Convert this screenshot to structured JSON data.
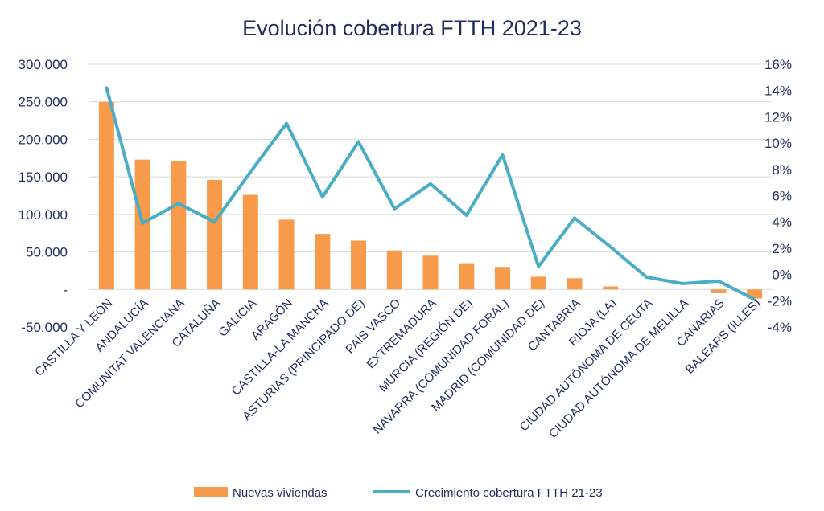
{
  "chart_data": {
    "type": "bar",
    "title": "Evolución cobertura FTTH 2021-23",
    "categories": [
      "CASTILLA Y LEÓN",
      "ANDALUCÍA",
      "COMUNITAT VALENCIANA",
      "CATALUÑA",
      "GALICIA",
      "ARAGÓN",
      "CASTILLA-LA MANCHA",
      "ASTURIAS (PRINCIPADO DE)",
      "PAÍS VASCO",
      "EXTREMADURA",
      "MURCIA (REGIÓN DE)",
      "NAVARRA (COMUNIDAD FORAL)",
      "MADRID (COMUNIDAD DE)",
      "CANTABRIA",
      "RIOJA (LA)",
      "CIUDAD AUTÓNOMA DE CEUTA",
      "CIUDAD AUTÓNOMA DE MELILLA",
      "CANARIAS",
      "BALEARS (ILLES)"
    ],
    "series": [
      {
        "name": "Nuevas viviendas",
        "type": "bar",
        "axis": "left",
        "color": "#f79a4a",
        "values": [
          250000,
          173000,
          171000,
          146000,
          126000,
          93000,
          74000,
          65000,
          52000,
          45000,
          35000,
          30000,
          17000,
          15000,
          4000,
          0,
          0,
          -5000,
          -12000
        ]
      },
      {
        "name": "Crecimiento cobertura FTTH 21-23",
        "type": "line",
        "axis": "right",
        "color": "#4bacc6",
        "values": [
          14.2,
          3.9,
          5.4,
          4.0,
          7.8,
          11.5,
          5.9,
          10.1,
          5.0,
          6.9,
          4.5,
          9.1,
          0.6,
          4.3,
          2.1,
          -0.2,
          -0.7,
          -0.5,
          -1.9
        ]
      }
    ],
    "y_left": {
      "min": -50000,
      "max": 300000,
      "ticks": [
        {
          "value": 300000,
          "label": "300.000"
        },
        {
          "value": 250000,
          "label": "250.000"
        },
        {
          "value": 200000,
          "label": "200.000"
        },
        {
          "value": 150000,
          "label": "150.000"
        },
        {
          "value": 100000,
          "label": "100.000"
        },
        {
          "value": 50000,
          "label": "50.000"
        },
        {
          "value": 0,
          "label": "-"
        },
        {
          "value": -50000,
          "label": "-50.000"
        }
      ]
    },
    "y_right": {
      "min": -4,
      "max": 16,
      "ticks": [
        {
          "value": 16,
          "label": "16%"
        },
        {
          "value": 14,
          "label": "14%"
        },
        {
          "value": 12,
          "label": "12%"
        },
        {
          "value": 10,
          "label": "10%"
        },
        {
          "value": 8,
          "label": "8%"
        },
        {
          "value": 6,
          "label": "6%"
        },
        {
          "value": 4,
          "label": "4%"
        },
        {
          "value": 2,
          "label": "2%"
        },
        {
          "value": 0,
          "label": "0%"
        },
        {
          "value": -2,
          "label": "-2%"
        },
        {
          "value": -4,
          "label": "-4%"
        }
      ]
    },
    "grid": true,
    "legend": "bottom",
    "legend_items": [
      {
        "label": "Nuevas viviendas",
        "kind": "bar",
        "color": "#f79a4a"
      },
      {
        "label": "Crecimiento cobertura FTTH 21-23",
        "kind": "line",
        "color": "#4bacc6"
      }
    ]
  }
}
